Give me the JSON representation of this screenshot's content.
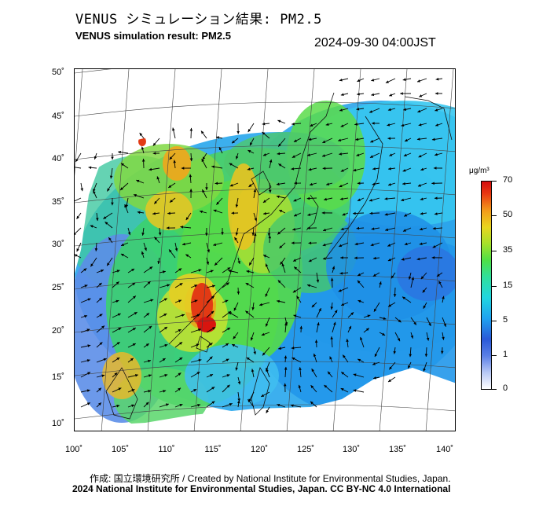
{
  "title_jp": "VENUS シミュレーション結果: PM2.5",
  "title_en": "VENUS simulation result: PM2.5",
  "timestamp": "2024-09-30 04:00JST",
  "lat_labels": [
    "50˚",
    "45˚",
    "40˚",
    "35˚",
    "30˚",
    "25˚",
    "20˚",
    "15˚",
    "10˚"
  ],
  "lon_labels": [
    "100˚",
    "105˚",
    "110˚",
    "115˚",
    "120˚",
    "125˚",
    "130˚",
    "135˚",
    "140˚"
  ],
  "colorbar": {
    "unit": "μg/m³",
    "ticks": [
      "70",
      "50",
      "35",
      "15",
      "5",
      "1",
      "0"
    ],
    "colors": [
      "#ffffff",
      "#5a7fe6",
      "#1fa2f0",
      "#21d6e0",
      "#4ee046",
      "#e9d61f",
      "#f39b1a",
      "#d40d0d"
    ]
  },
  "credit": "作成: 国立環境研究所 / Created by National Institute for Environmental Studies, Japan.",
  "copyright": "2024 National Institute for Environmental Studies, Japan. CC BY-NC 4.0 International"
}
